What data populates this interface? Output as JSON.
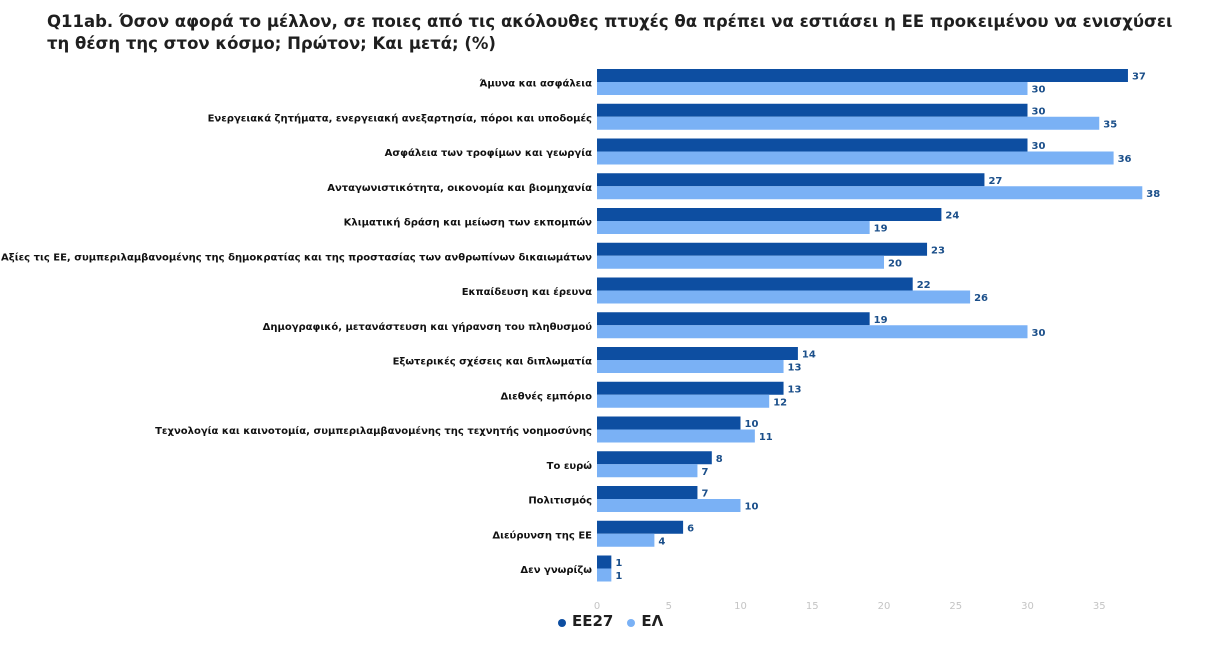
{
  "title": "Q11ab. Όσον αφορά το μέλλον, σε ποιες από τις ακόλουθες πτυχές θα πρέπει να εστιάσει η ΕΕ προκειμένου να ενισχύσει τη θέση της στον κόσμο; Πρώτον; Και μετά; (%)",
  "colors": {
    "ee27": "#0d4ea1",
    "el": "#7ab1f5",
    "value_label": "#1b4f8a",
    "tick": "#c4c4c4"
  },
  "chart_data": {
    "type": "bar",
    "orientation": "horizontal",
    "categories": [
      "Άμυνα και ασφάλεια",
      "Ενεργειακά ζητήματα, ενεργειακή ανεξαρτησία, πόροι και υποδομές",
      "Ασφάλεια των τροφίμων και γεωργία",
      "Ανταγωνιστικότητα, οικονομία και βιομηχανία",
      "Κλιματική δράση και μείωση των εκπομπών",
      "Αξίες τις ΕΕ, συμπεριλαμβανομένης της δημοκρατίας και της προστασίας των ανθρωπίνων δικαιωμάτων",
      "Εκπαίδευση και έρευνα",
      "Δημογραφικό, μετανάστευση και γήρανση του πληθυσμού",
      "Εξωτερικές σχέσεις και διπλωματία",
      "Διεθνές εμπόριο",
      "Τεχνολογία και καινοτομία, συμπεριλαμβανομένης της τεχνητής νοημοσύνης",
      "Το ευρώ",
      "Πολιτισμός",
      "Διεύρυνση της ΕΕ",
      "Δεν γνωρίζω"
    ],
    "series": [
      {
        "name": "ΕΕ27",
        "values": [
          37,
          30,
          30,
          27,
          24,
          23,
          22,
          19,
          14,
          13,
          10,
          8,
          7,
          6,
          1
        ]
      },
      {
        "name": "ΕΛ",
        "values": [
          30,
          35,
          36,
          38,
          19,
          20,
          26,
          30,
          13,
          12,
          11,
          7,
          10,
          4,
          1
        ]
      }
    ],
    "xlim": [
      0,
      38
    ],
    "xticks": [
      "0",
      "5",
      "10",
      "15",
      "20",
      "25",
      "30",
      "35"
    ],
    "grid": false,
    "legend_position": "bottom-center"
  }
}
